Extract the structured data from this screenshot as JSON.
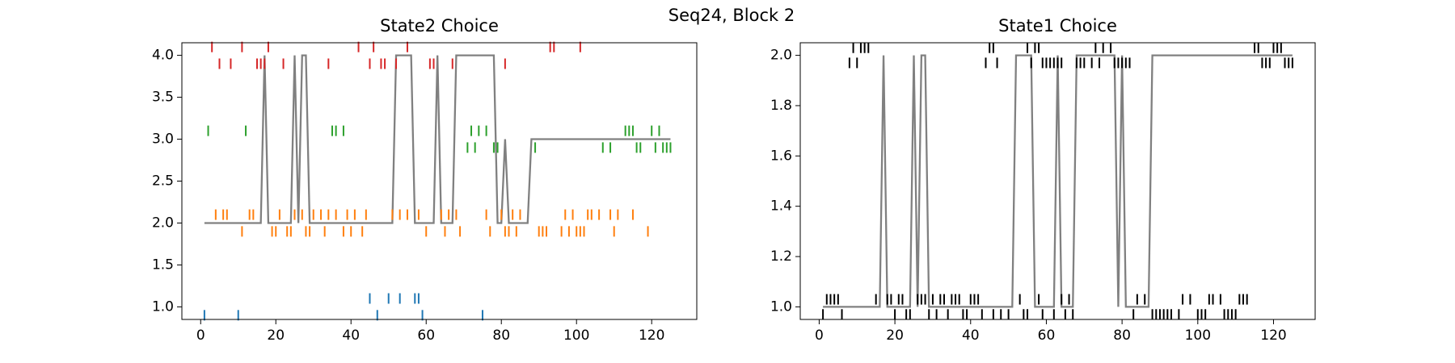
{
  "title": "Seq24, Block 2",
  "chart_data": [
    {
      "type": "line",
      "title": "State2 Choice",
      "xlim": [
        -5,
        132
      ],
      "xticks": [
        0,
        20,
        40,
        60,
        80,
        100,
        120
      ],
      "ylim": [
        0.85,
        4.15
      ],
      "yticks": [
        {
          "value": 1,
          "label": "1.0"
        },
        {
          "value": 1.5,
          "label": "1.5"
        },
        {
          "value": 2,
          "label": "2.0"
        },
        {
          "value": 2.5,
          "label": "2.5"
        },
        {
          "value": 3,
          "label": "3.0"
        },
        {
          "value": 3.5,
          "label": "3.5"
        },
        {
          "value": 4,
          "label": "4.0"
        }
      ],
      "series": [
        {
          "kind": "line",
          "color": "#808080",
          "x": [
            1,
            16,
            17,
            18,
            24,
            25,
            26,
            27,
            28,
            29,
            51,
            52,
            56,
            57,
            62,
            63,
            64,
            67,
            68,
            78,
            79,
            80,
            81,
            82,
            87,
            88,
            125
          ],
          "values": [
            2,
            2,
            4,
            2,
            2,
            4,
            2,
            4,
            4,
            2,
            2,
            4,
            4,
            2,
            2,
            4,
            2,
            2,
            4,
            4,
            2,
            2,
            3,
            2,
            2,
            3,
            3
          ]
        },
        {
          "kind": "ticks",
          "color": "#d62728",
          "x": [
            3,
            11,
            18,
            42,
            46,
            55,
            93,
            94,
            101,
            5,
            8,
            15,
            16,
            17,
            22,
            34,
            45,
            48,
            49,
            52,
            61,
            62,
            67,
            81
          ],
          "values": [
            4.1,
            4.1,
            4.1,
            4.1,
            4.1,
            4.1,
            4.1,
            4.1,
            4.1,
            3.9,
            3.9,
            3.9,
            3.9,
            3.9,
            3.9,
            3.9,
            3.9,
            3.9,
            3.9,
            3.9,
            3.9,
            3.9,
            3.9,
            3.9
          ]
        },
        {
          "kind": "ticks",
          "color": "#2ca02c",
          "x": [
            2,
            12,
            35,
            36,
            38,
            72,
            74,
            76,
            113,
            114,
            115,
            120,
            122,
            71,
            73,
            78,
            79,
            89,
            107,
            109,
            116,
            117,
            121,
            123,
            124,
            125
          ],
          "values": [
            3.1,
            3.1,
            3.1,
            3.1,
            3.1,
            3.1,
            3.1,
            3.1,
            3.1,
            3.1,
            3.1,
            3.1,
            3.1,
            2.9,
            2.9,
            2.9,
            2.9,
            2.9,
            2.9,
            2.9,
            2.9,
            2.9,
            2.9,
            2.9,
            2.9,
            2.9
          ]
        },
        {
          "kind": "ticks",
          "color": "#ff7f0e",
          "x": [
            4,
            6,
            7,
            13,
            14,
            21,
            25,
            27,
            30,
            32,
            34,
            36,
            39,
            41,
            44,
            51,
            53,
            55,
            58,
            64,
            66,
            68,
            76,
            80,
            83,
            85,
            97,
            99,
            103,
            104,
            106,
            109,
            111,
            115,
            11,
            19,
            20,
            23,
            24,
            28,
            29,
            33,
            38,
            40,
            43,
            60,
            65,
            69,
            77,
            81,
            82,
            84,
            90,
            91,
            92,
            96,
            98,
            100,
            101,
            102,
            110,
            119
          ],
          "values": [
            2.1,
            2.1,
            2.1,
            2.1,
            2.1,
            2.1,
            2.1,
            2.1,
            2.1,
            2.1,
            2.1,
            2.1,
            2.1,
            2.1,
            2.1,
            2.1,
            2.1,
            2.1,
            2.1,
            2.1,
            2.1,
            2.1,
            2.1,
            2.1,
            2.1,
            2.1,
            2.1,
            2.1,
            2.1,
            2.1,
            2.1,
            2.1,
            2.1,
            2.1,
            1.9,
            1.9,
            1.9,
            1.9,
            1.9,
            1.9,
            1.9,
            1.9,
            1.9,
            1.9,
            1.9,
            1.9,
            1.9,
            1.9,
            1.9,
            1.9,
            1.9,
            1.9,
            1.9,
            1.9,
            1.9,
            1.9,
            1.9,
            1.9,
            1.9,
            1.9,
            1.9,
            1.9
          ]
        },
        {
          "kind": "ticks",
          "color": "#1f77b4",
          "x": [
            45,
            50,
            53,
            57,
            58,
            1,
            10,
            47,
            59,
            75
          ],
          "values": [
            1.1,
            1.1,
            1.1,
            1.1,
            1.1,
            0.9,
            0.9,
            0.9,
            0.9,
            0.9
          ]
        }
      ]
    },
    {
      "type": "line",
      "title": "State1 Choice",
      "xlim": [
        -5,
        131
      ],
      "xticks": [
        0,
        20,
        40,
        60,
        80,
        100,
        120
      ],
      "ylim": [
        0.95,
        2.05
      ],
      "yticks": [
        {
          "value": 1,
          "label": "1.0"
        },
        {
          "value": 1.2,
          "label": "1.2"
        },
        {
          "value": 1.4,
          "label": "1.4"
        },
        {
          "value": 1.6,
          "label": "1.6"
        },
        {
          "value": 1.8,
          "label": "1.8"
        },
        {
          "value": 2,
          "label": "2.0"
        }
      ],
      "series": [
        {
          "kind": "line",
          "color": "#808080",
          "x": [
            1,
            16,
            17,
            18,
            24,
            25,
            26,
            27,
            28,
            29,
            51,
            52,
            56,
            57,
            62,
            63,
            64,
            67,
            68,
            78,
            79,
            80,
            81,
            87,
            88,
            125
          ],
          "values": [
            1,
            1,
            2,
            1,
            1,
            2,
            1,
            2,
            2,
            1,
            1,
            2,
            2,
            1,
            1,
            2,
            1,
            1,
            2,
            2,
            1,
            2,
            1,
            1,
            2,
            2
          ]
        },
        {
          "kind": "ticks",
          "color": "#000000",
          "x": [
            9,
            11,
            12,
            13,
            45,
            46,
            55,
            57,
            58,
            73,
            75,
            77,
            115,
            116,
            120,
            121,
            122,
            8,
            10,
            44,
            47,
            56,
            59,
            60,
            61,
            62,
            63,
            64,
            68,
            69,
            70,
            72,
            74,
            78,
            79,
            80,
            81,
            82,
            117,
            118,
            119,
            123,
            124,
            125
          ],
          "values": [
            2.03,
            2.03,
            2.03,
            2.03,
            2.03,
            2.03,
            2.03,
            2.03,
            2.03,
            2.03,
            2.03,
            2.03,
            2.03,
            2.03,
            2.03,
            2.03,
            2.03,
            1.97,
            1.97,
            1.97,
            1.97,
            1.97,
            1.97,
            1.97,
            1.97,
            1.97,
            1.97,
            1.97,
            1.97,
            1.97,
            1.97,
            1.97,
            1.97,
            1.97,
            1.97,
            1.97,
            1.97,
            1.97,
            1.97,
            1.97,
            1.97,
            1.97,
            1.97,
            1.97
          ]
        },
        {
          "kind": "ticks",
          "color": "#000000",
          "x": [
            2,
            3,
            4,
            5,
            15,
            18,
            19,
            21,
            22,
            26,
            27,
            28,
            30,
            32,
            33,
            35,
            36,
            37,
            40,
            41,
            42,
            53,
            58,
            64,
            66,
            84,
            86,
            96,
            98,
            103,
            104,
            106,
            111,
            112,
            113,
            1,
            6,
            20,
            23,
            24,
            29,
            31,
            34,
            38,
            39,
            43,
            46,
            48,
            50,
            54,
            55,
            59,
            62,
            65,
            67,
            83,
            88,
            89,
            90,
            91,
            92,
            93,
            95,
            100,
            101,
            102,
            107,
            108,
            109,
            110
          ],
          "values": [
            1.03,
            1.03,
            1.03,
            1.03,
            1.03,
            1.03,
            1.03,
            1.03,
            1.03,
            1.03,
            1.03,
            1.03,
            1.03,
            1.03,
            1.03,
            1.03,
            1.03,
            1.03,
            1.03,
            1.03,
            1.03,
            1.03,
            1.03,
            1.03,
            1.03,
            1.03,
            1.03,
            1.03,
            1.03,
            1.03,
            1.03,
            1.03,
            1.03,
            1.03,
            1.03,
            0.97,
            0.97,
            0.97,
            0.97,
            0.97,
            0.97,
            0.97,
            0.97,
            0.97,
            0.97,
            0.97,
            0.97,
            0.97,
            0.97,
            0.97,
            0.97,
            0.97,
            0.97,
            0.97,
            0.97,
            0.97,
            0.97,
            0.97,
            0.97,
            0.97,
            0.97,
            0.97,
            0.97,
            0.97,
            0.97,
            0.97,
            0.97,
            0.97,
            0.97,
            0.97
          ]
        }
      ]
    }
  ]
}
